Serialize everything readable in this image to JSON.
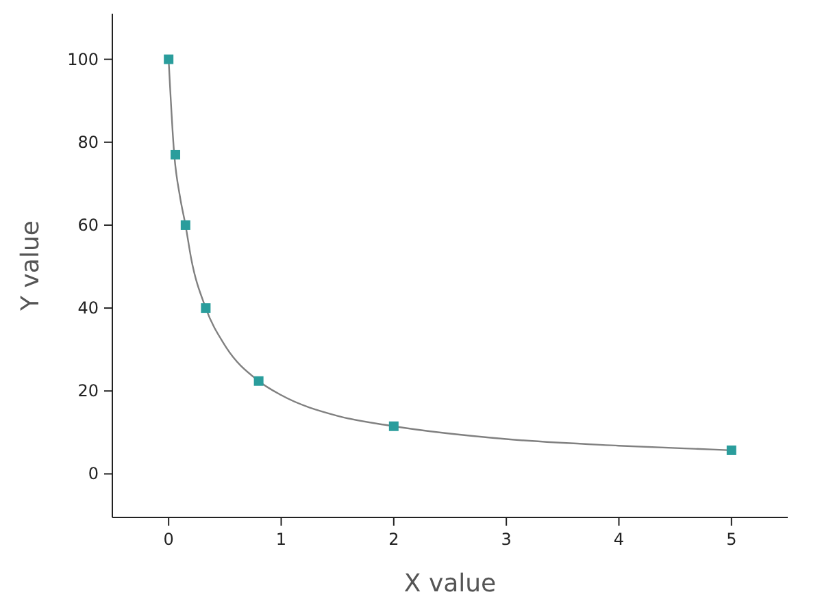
{
  "chart_data": {
    "type": "scatter",
    "xlabel": "X value",
    "ylabel": "Y value",
    "xlim": [
      -0.5,
      5.5
    ],
    "xticks": [
      0,
      1,
      2,
      3,
      4,
      5
    ],
    "ylim": [
      -10.5,
      111
    ],
    "yticks": [
      0,
      20,
      40,
      60,
      80,
      100
    ],
    "grid": false,
    "series": [
      {
        "type": "line",
        "color": "#808080",
        "line_style": "solid",
        "marker": "none",
        "x": [
          0,
          0.05,
          0.1,
          0.15,
          0.2,
          0.33,
          0.5,
          0.8,
          1,
          1.5,
          2,
          3,
          4,
          5
        ],
        "values": [
          100,
          77,
          67,
          60,
          52,
          40,
          31,
          22.4,
          19,
          14,
          11.5,
          8.4,
          6.8,
          5.7
        ]
      },
      {
        "color": "#2a9d9c",
        "marker": "square",
        "x": [
          0,
          0.06,
          0.15,
          0.33,
          0.8,
          2,
          5
        ],
        "values": [
          100,
          77,
          60,
          40,
          22.4,
          11.5,
          5.7
        ]
      }
    ]
  }
}
